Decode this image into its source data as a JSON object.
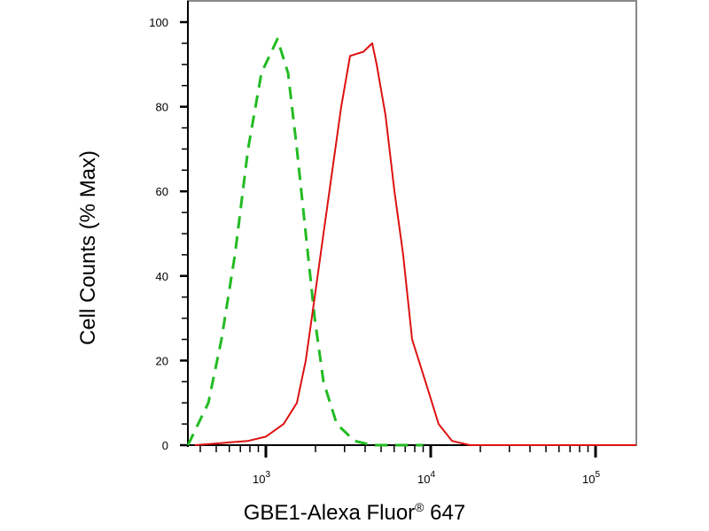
{
  "chart_data": {
    "type": "line",
    "title": "",
    "xlabel": "GBE1-Alexa Fluor",
    "xlabel_sup": "®",
    "xlabel_suffix": " 647",
    "ylabel": "Cell Counts (% Max)",
    "xscale": "log",
    "xlim": [
      337,
      176600
    ],
    "ylim": [
      0,
      100
    ],
    "xticks": [
      {
        "value": 1000,
        "label": "10",
        "exp": "3"
      },
      {
        "value": 10000,
        "label": "10",
        "exp": "4"
      },
      {
        "value": 100000,
        "label": "10",
        "exp": "5"
      }
    ],
    "yticks": [
      0,
      20,
      40,
      60,
      80,
      100
    ],
    "grid": false,
    "series": [
      {
        "style": "dashed",
        "color": "#22bb22",
        "x": [
          337,
          448,
          538,
          649,
          780,
          940,
          1175,
          1362,
          1542,
          1746,
          1977,
          2236,
          2692,
          3448,
          4418,
          9000
        ],
        "y": [
          0,
          10,
          25,
          45,
          70,
          88,
          96,
          88,
          70,
          50,
          30,
          15,
          5,
          1,
          0,
          0
        ]
      },
      {
        "style": "solid",
        "color": "#dd1111",
        "x": [
          371,
          780,
          1000,
          1281,
          1542,
          1746,
          1977,
          2236,
          2531,
          2864,
          3243,
          3902,
          4418,
          4699,
          5318,
          6026,
          6808,
          7709,
          9290,
          11170,
          13460,
          17260,
          176600
        ],
        "y": [
          0,
          1,
          2,
          5,
          10,
          20,
          35,
          50,
          65,
          80,
          92,
          93,
          95,
          90,
          78,
          60,
          45,
          25,
          15,
          5,
          1,
          0,
          0
        ]
      }
    ]
  }
}
